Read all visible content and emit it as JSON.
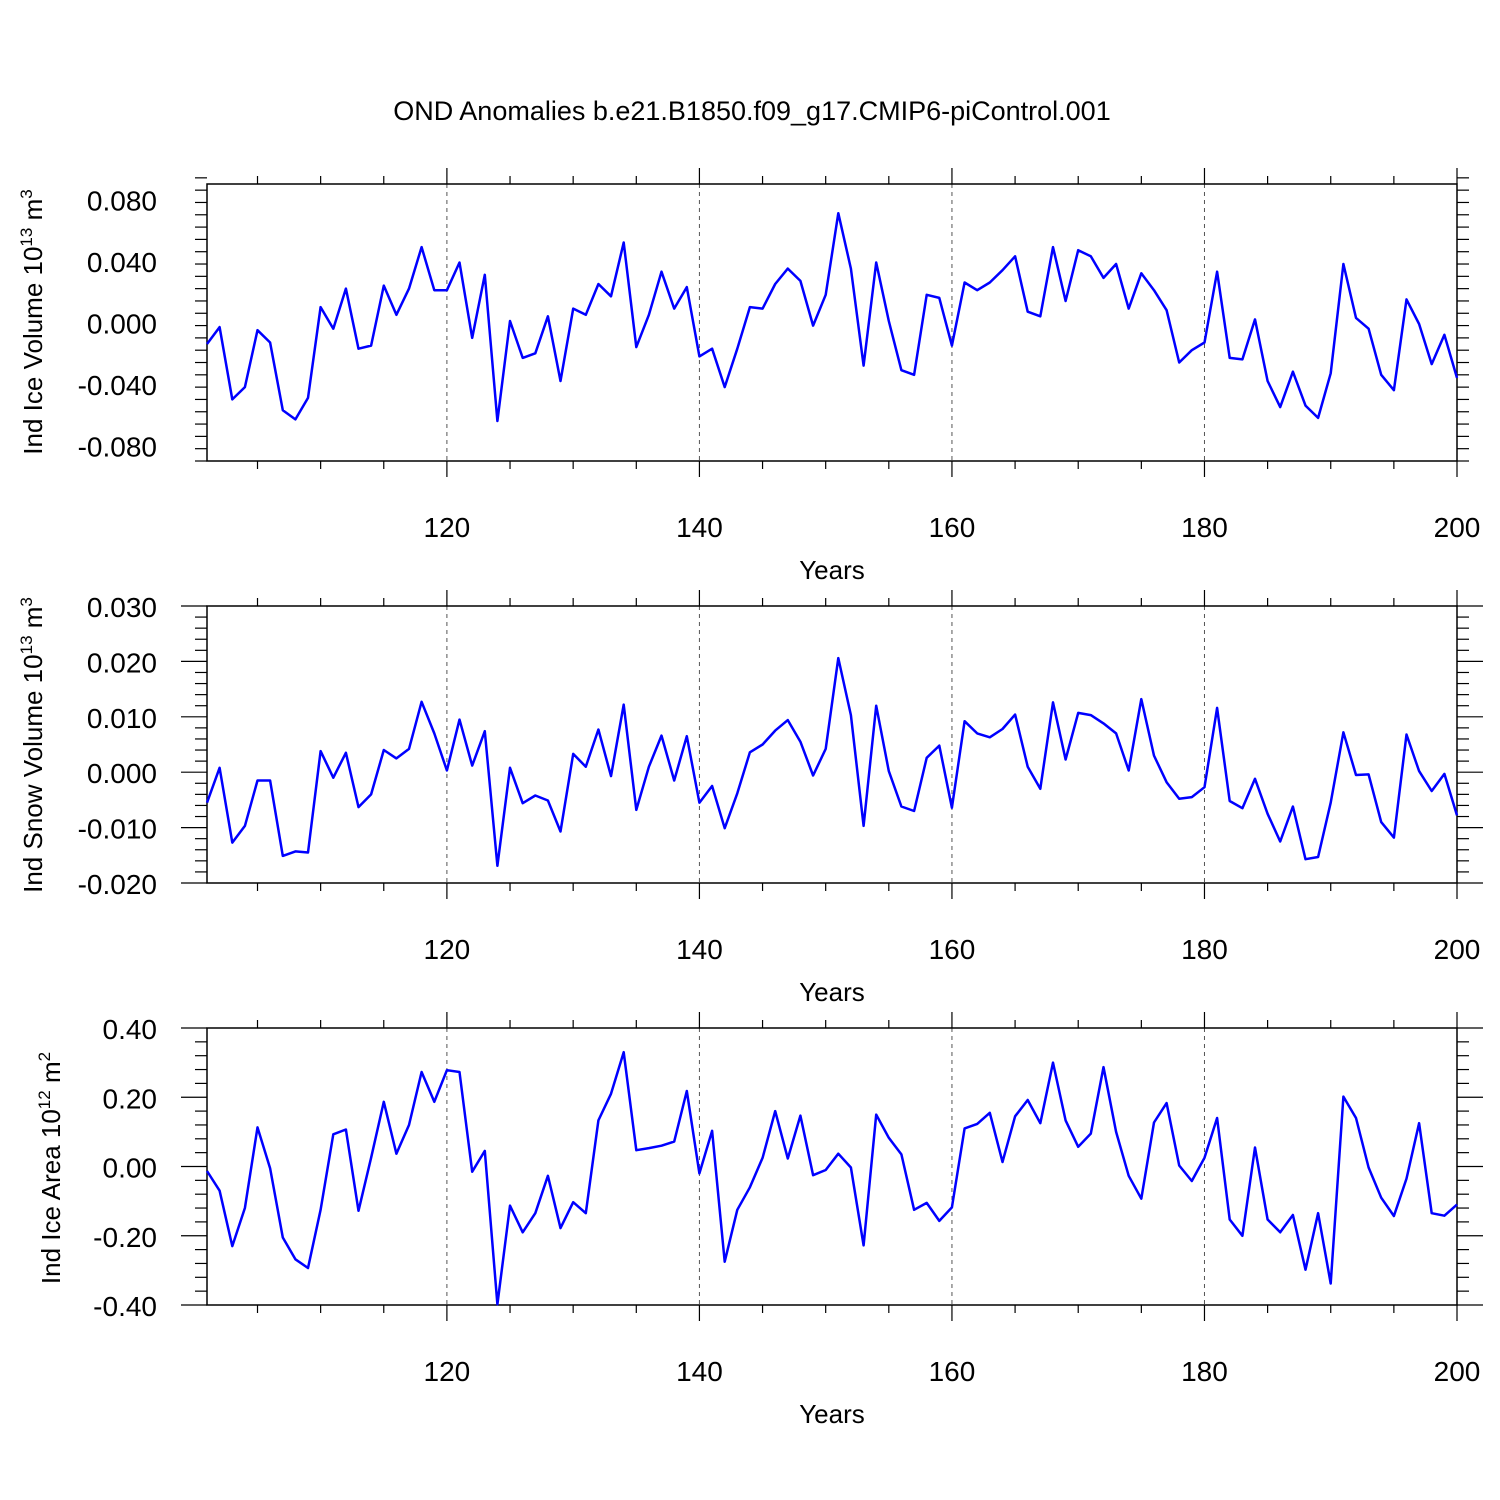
{
  "chart_data": [
    {
      "type": "line",
      "title": "OND Anomalies b.e21.B1850.f09_g17.CMIP6-piControl.001",
      "xlabel": "Years",
      "ylabel": "Ind Ice Volume 10",
      "ylabel_exp": "13",
      "ylabel_unit": " m",
      "ylabel_unit_exp": "3",
      "xlim": [
        101,
        200
      ],
      "ylim": [
        -0.09,
        0.09
      ],
      "xticks": [
        120,
        140,
        160,
        180,
        200
      ],
      "xtick_labels": [
        "120",
        "140",
        "160",
        "180",
        "200"
      ],
      "yticks": [
        -0.08,
        -0.04,
        0.0,
        0.04,
        0.08
      ],
      "ytick_labels": [
        "-0.080",
        "-0.040",
        "0.000",
        "0.040",
        "0.080"
      ],
      "grid": "vertical dashed at major x ticks",
      "color": "#0000ff",
      "x_start": 101,
      "values": [
        -0.014,
        -0.003,
        -0.05,
        -0.042,
        -0.005,
        -0.013,
        -0.057,
        -0.063,
        -0.049,
        0.01,
        -0.004,
        0.022,
        -0.017,
        -0.015,
        0.024,
        0.005,
        0.022,
        0.049,
        0.021,
        0.021,
        0.039,
        -0.01,
        0.031,
        -0.064,
        0.001,
        -0.023,
        -0.02,
        0.004,
        -0.038,
        0.009,
        0.005,
        0.025,
        0.017,
        0.052,
        -0.016,
        0.005,
        0.033,
        0.009,
        0.023,
        -0.022,
        -0.017,
        -0.042,
        -0.017,
        0.01,
        0.009,
        0.025,
        0.035,
        0.027,
        -0.002,
        0.018,
        0.071,
        0.035,
        -0.028,
        0.039,
        0.001,
        -0.031,
        -0.034,
        0.018,
        0.016,
        -0.015,
        0.026,
        0.021,
        0.026,
        0.034,
        0.043,
        0.007,
        0.004,
        0.049,
        0.014,
        0.047,
        0.043,
        0.029,
        0.038,
        0.009,
        0.032,
        0.021,
        0.008,
        -0.026,
        -0.018,
        -0.013,
        0.033,
        -0.023,
        -0.024,
        0.002,
        -0.038,
        -0.055,
        -0.032,
        -0.054,
        -0.062,
        -0.033,
        0.038,
        0.003,
        -0.004,
        -0.034,
        -0.044,
        0.015,
        -0.001,
        -0.027,
        -0.008,
        -0.036
      ]
    },
    {
      "type": "line",
      "xlabel": "Years",
      "ylabel": "Ind Snow Volume 10",
      "ylabel_exp": "13",
      "ylabel_unit": " m",
      "ylabel_unit_exp": "3",
      "xlim": [
        101,
        200
      ],
      "ylim": [
        -0.02,
        0.03
      ],
      "xticks": [
        120,
        140,
        160,
        180,
        200
      ],
      "xtick_labels": [
        "120",
        "140",
        "160",
        "180",
        "200"
      ],
      "yticks": [
        -0.02,
        -0.01,
        0.0,
        0.01,
        0.02,
        0.03
      ],
      "ytick_labels": [
        "-0.020",
        "-0.010",
        "0.000",
        "0.010",
        "0.020",
        "0.030"
      ],
      "grid": "vertical dashed at major x ticks",
      "color": "#0000ff",
      "x_start": 101,
      "values": [
        -0.0055,
        0.0008,
        -0.0127,
        -0.0097,
        -0.0015,
        -0.0015,
        -0.0151,
        -0.0143,
        -0.0145,
        0.0038,
        -0.001,
        0.0035,
        -0.0063,
        -0.004,
        0.004,
        0.0025,
        0.0042,
        0.0127,
        0.007,
        0.0003,
        0.0095,
        0.0012,
        0.0074,
        -0.0169,
        0.0008,
        -0.0056,
        -0.0042,
        -0.0051,
        -0.0107,
        0.0033,
        0.001,
        0.0077,
        -0.0007,
        0.0122,
        -0.0068,
        0.001,
        0.0066,
        -0.0015,
        0.0065,
        -0.0055,
        -0.0025,
        -0.0101,
        -0.0038,
        0.0036,
        0.005,
        0.0075,
        0.0094,
        0.0055,
        -0.0006,
        0.0042,
        0.0206,
        0.0103,
        -0.0097,
        0.012,
        0.0002,
        -0.0062,
        -0.007,
        0.0026,
        0.0048,
        -0.0064,
        0.0092,
        0.007,
        0.0063,
        0.0078,
        0.0104,
        0.001,
        -0.003,
        0.0126,
        0.0023,
        0.0107,
        0.0103,
        0.0088,
        0.007,
        0.0003,
        0.0132,
        0.003,
        -0.0018,
        -0.0048,
        -0.0045,
        -0.0027,
        0.0116,
        -0.0052,
        -0.0065,
        -0.0012,
        -0.0075,
        -0.0125,
        -0.0062,
        -0.0157,
        -0.0153,
        -0.0055,
        0.0072,
        -0.0005,
        -0.0004,
        -0.009,
        -0.0118,
        0.0068,
        0.0002,
        -0.0034,
        -0.0003,
        -0.0078
      ]
    },
    {
      "type": "line",
      "xlabel": "Years",
      "ylabel": "Ind Ice Area 10",
      "ylabel_exp": "12",
      "ylabel_unit": " m",
      "ylabel_unit_exp": "2",
      "xlim": [
        101,
        200
      ],
      "ylim": [
        -0.4,
        0.4
      ],
      "xticks": [
        120,
        140,
        160,
        180,
        200
      ],
      "xtick_labels": [
        "120",
        "140",
        "160",
        "180",
        "200"
      ],
      "yticks": [
        -0.4,
        -0.2,
        0.0,
        0.2,
        0.4
      ],
      "ytick_labels": [
        "-0.40",
        "-0.20",
        "0.00",
        "0.20",
        "0.40"
      ],
      "grid": "vertical dashed at major x ticks",
      "color": "#0000ff",
      "x_start": 101,
      "values": [
        -0.013,
        -0.07,
        -0.23,
        -0.12,
        0.113,
        -0.005,
        -0.205,
        -0.268,
        -0.293,
        -0.125,
        0.093,
        0.107,
        -0.128,
        0.025,
        0.187,
        0.037,
        0.12,
        0.273,
        0.187,
        0.278,
        0.273,
        -0.015,
        0.045,
        -0.398,
        -0.113,
        -0.19,
        -0.135,
        -0.027,
        -0.178,
        -0.103,
        -0.135,
        0.133,
        0.21,
        0.33,
        0.047,
        0.053,
        0.06,
        0.072,
        0.218,
        -0.02,
        0.103,
        -0.275,
        -0.125,
        -0.06,
        0.025,
        0.16,
        0.023,
        0.147,
        -0.025,
        -0.01,
        0.037,
        -0.003,
        -0.228,
        0.15,
        0.083,
        0.035,
        -0.125,
        -0.105,
        -0.157,
        -0.118,
        0.11,
        0.123,
        0.155,
        0.013,
        0.145,
        0.192,
        0.125,
        0.3,
        0.133,
        0.057,
        0.095,
        0.287,
        0.1,
        -0.027,
        -0.093,
        0.127,
        0.183,
        0.003,
        -0.042,
        0.025,
        0.14,
        -0.153,
        -0.2,
        0.055,
        -0.153,
        -0.19,
        -0.14,
        -0.298,
        -0.135,
        -0.338,
        0.202,
        0.14,
        -0.003,
        -0.09,
        -0.143,
        -0.035,
        0.125,
        -0.135,
        -0.142,
        -0.11
      ]
    }
  ]
}
